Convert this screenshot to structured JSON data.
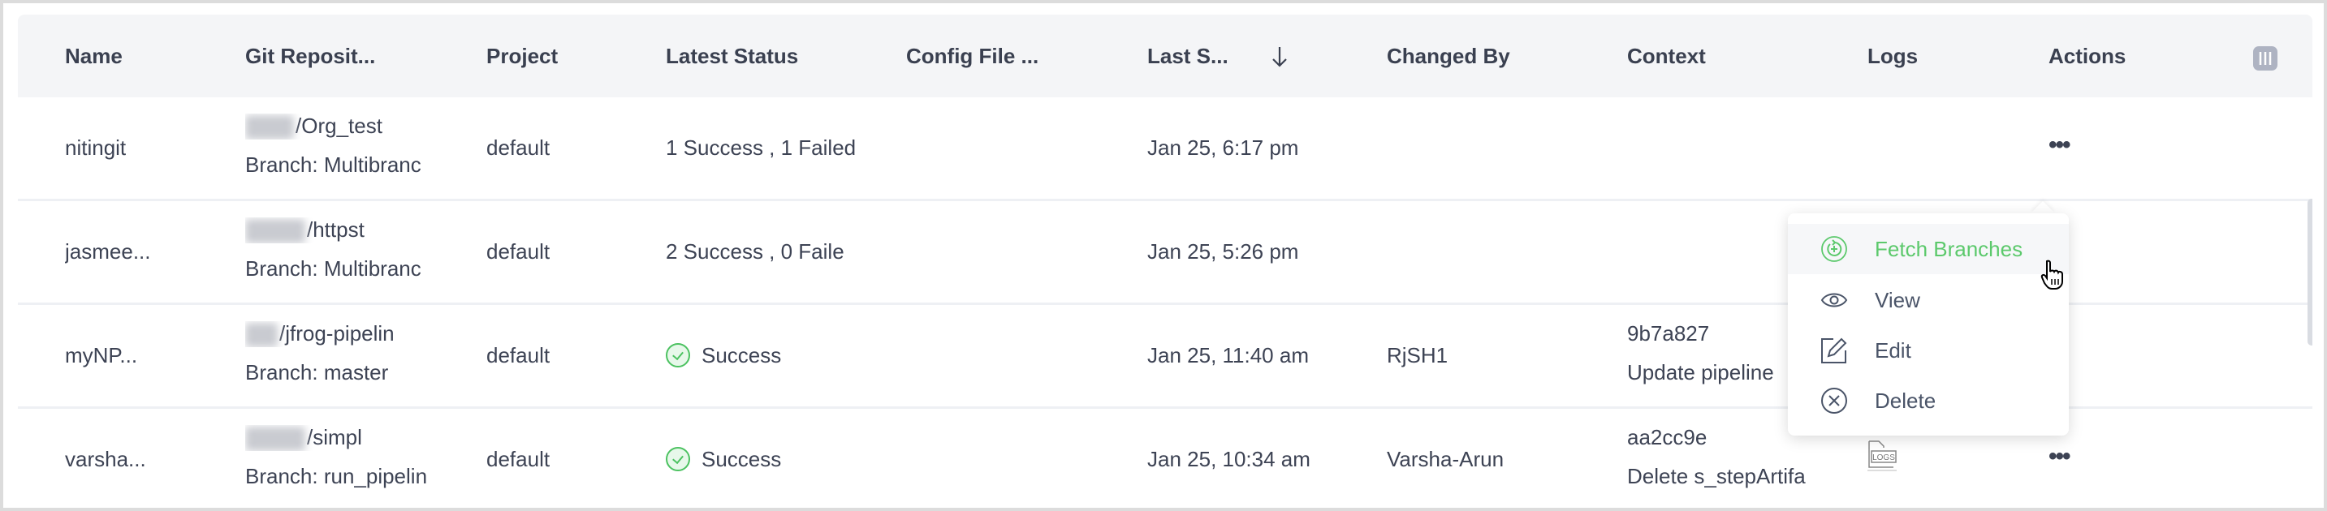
{
  "columns": [
    "Name",
    "Git Reposit...",
    "Project",
    "Latest Status",
    "Config File ...",
    "Last S...",
    "Changed By",
    "Context",
    "Logs",
    "Actions"
  ],
  "sort": {
    "column": "Last S...",
    "direction": "descending",
    "icon": "arrow-down-icon"
  },
  "rows": [
    {
      "name": "nitingit",
      "repo": "/Org_test",
      "branch": "Branch: Multibranc",
      "project": "default",
      "status": "1 Success , 1 Failed",
      "status_icon": false,
      "last": "Jan 25, 6:17 pm",
      "changed_by": "",
      "context_sha": "",
      "context_msg": "",
      "logs": false
    },
    {
      "name": "jasmee...",
      "repo": "/httpst",
      "branch": "Branch: Multibranc",
      "project": "default",
      "status": "2 Success , 0 Faile",
      "status_icon": false,
      "last": "Jan 25, 5:26 pm",
      "changed_by": "",
      "context_sha": "",
      "context_msg": "",
      "logs": false
    },
    {
      "name": "myNP...",
      "repo": "/jfrog-pipelin",
      "branch": "Branch: master",
      "project": "default",
      "status": "Success",
      "status_icon": true,
      "last": "Jan 25, 11:40 am",
      "changed_by": "RjSH1",
      "context_sha": "9b7a827",
      "context_msg": "Update pipeline",
      "logs": false
    },
    {
      "name": "varsha...",
      "repo": "/simpl",
      "branch": "Branch: run_pipelin",
      "project": "default",
      "status": "Success",
      "status_icon": true,
      "last": "Jan 25, 10:34 am",
      "changed_by": "Varsha-Arun",
      "context_sha": "aa2cc9e",
      "context_msg": "Delete s_stepArtifa",
      "logs": true
    }
  ],
  "logs_icon_label": "LOGS",
  "menu": {
    "items": [
      {
        "label": "Fetch Branches",
        "icon": "fetch-icon",
        "highlighted": true
      },
      {
        "label": "View",
        "icon": "eye-icon"
      },
      {
        "label": "Edit",
        "icon": "edit-icon"
      },
      {
        "label": "Delete",
        "icon": "delete-icon"
      }
    ]
  },
  "colors": {
    "success": "#4cc261",
    "text": "#3d4354",
    "header_bg": "#f4f5f7"
  }
}
